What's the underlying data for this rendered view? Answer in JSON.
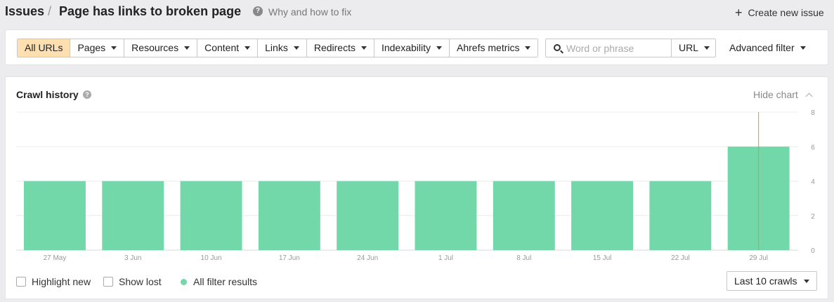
{
  "header": {
    "breadcrumb_root": "Issues",
    "separator": "/",
    "title": "Page has links to broken page",
    "help_link": "Why and how to fix",
    "create_button": "Create new issue"
  },
  "filters": {
    "tabs": [
      {
        "label": "All URLs",
        "active": true,
        "dropdown": false
      },
      {
        "label": "Pages",
        "active": false,
        "dropdown": true
      },
      {
        "label": "Resources",
        "active": false,
        "dropdown": true
      },
      {
        "label": "Content",
        "active": false,
        "dropdown": true
      },
      {
        "label": "Links",
        "active": false,
        "dropdown": true
      },
      {
        "label": "Redirects",
        "active": false,
        "dropdown": true
      },
      {
        "label": "Indexability",
        "active": false,
        "dropdown": true
      },
      {
        "label": "Ahrefs metrics",
        "active": false,
        "dropdown": true
      }
    ],
    "search_placeholder": "Word or phrase",
    "search_value": "",
    "url_select": "URL",
    "advanced": "Advanced filter"
  },
  "chart_panel": {
    "title": "Crawl history",
    "hide_label": "Hide chart",
    "legend": {
      "highlight_new": "Highlight new",
      "show_lost": "Show lost",
      "all_results": "All filter results",
      "all_results_color": "#72d7a9"
    },
    "crawls_select": "Last 10 crawls"
  },
  "chart_data": {
    "type": "bar",
    "categories": [
      "27 May",
      "3 Jun",
      "10 Jun",
      "17 Jun",
      "24 Jun",
      "1 Jul",
      "8 Jul",
      "15 Jul",
      "22 Jul",
      "29 Jul"
    ],
    "series": [
      {
        "name": "All filter results",
        "values": [
          4,
          4,
          4,
          4,
          4,
          4,
          4,
          4,
          4,
          6
        ],
        "color": "#72d7a9"
      }
    ],
    "ylim": [
      0,
      8
    ],
    "yticks": [
      0,
      2,
      4,
      6,
      8
    ],
    "y_axis_side": "right",
    "grid": true,
    "marker_category": "29 Jul",
    "marker_color": "#d9962b"
  }
}
